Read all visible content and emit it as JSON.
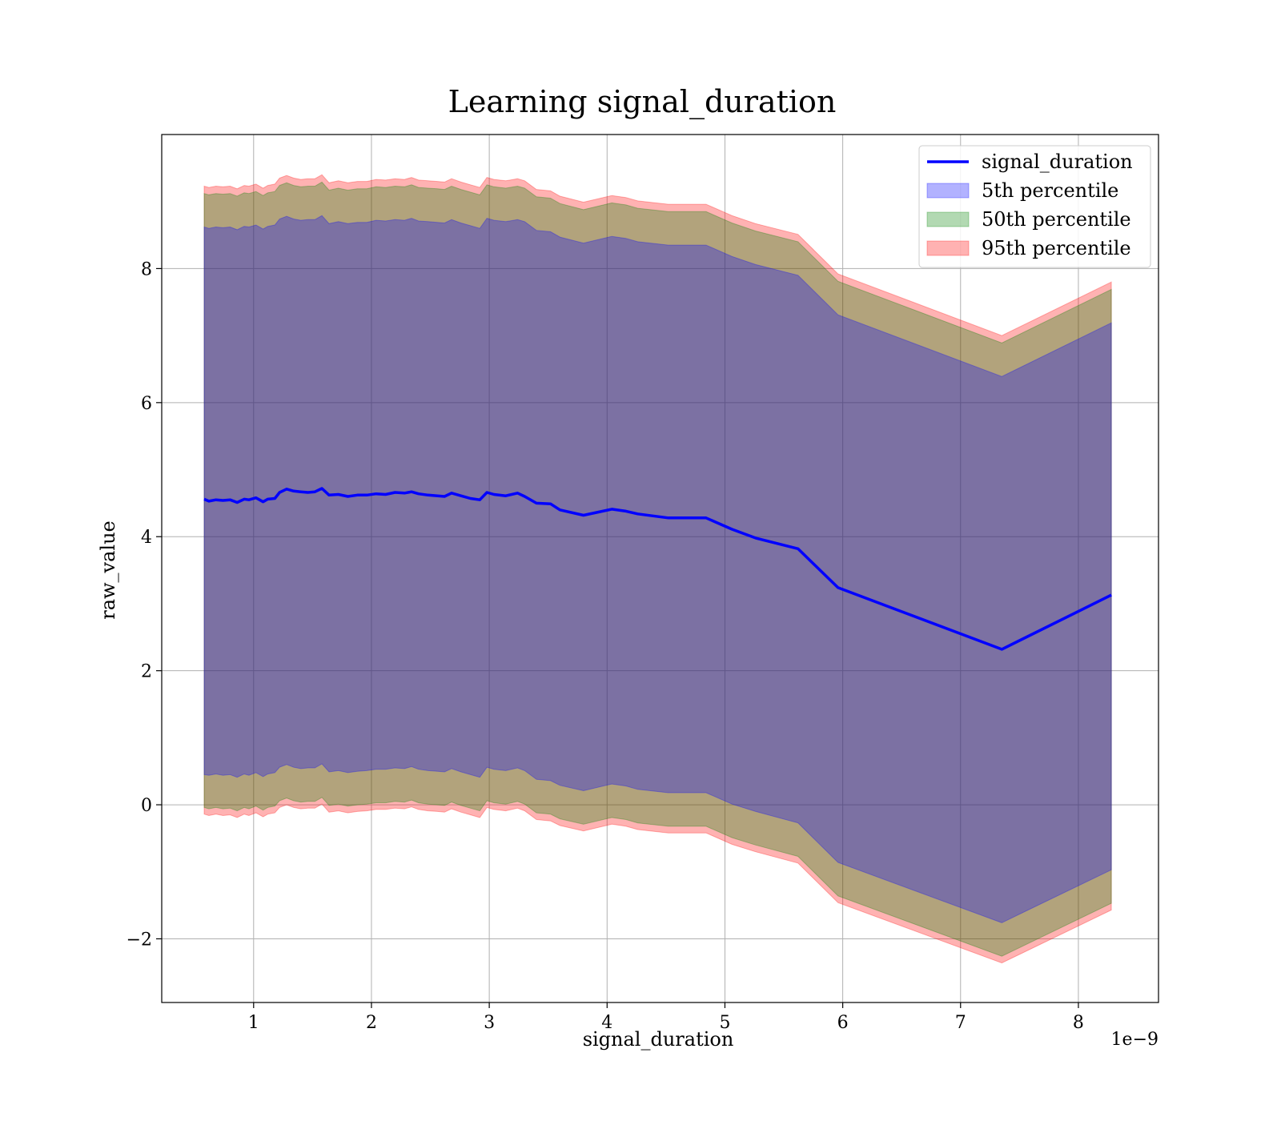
{
  "chart_data": {
    "type": "area",
    "title": "Learning signal_duration",
    "xlabel": "signal_duration",
    "ylabel": "raw_value",
    "x_offset_label": "1e−9",
    "x_tick_values": [
      1,
      2,
      3,
      4,
      5,
      6,
      7,
      8
    ],
    "x_tick_labels": [
      "1",
      "2",
      "3",
      "4",
      "5",
      "6",
      "7",
      "8"
    ],
    "y_tick_values": [
      -2,
      0,
      2,
      4,
      6,
      8
    ],
    "y_tick_labels": [
      "−2",
      "0",
      "2",
      "4",
      "6",
      "8"
    ],
    "xlim": [
      0.22,
      8.68
    ],
    "ylim": [
      -2.95,
      10.0
    ],
    "grid": true,
    "legend_position": "top-right",
    "x": [
      0.58,
      0.62,
      0.68,
      0.74,
      0.8,
      0.86,
      0.92,
      0.96,
      1.02,
      1.08,
      1.12,
      1.18,
      1.22,
      1.28,
      1.34,
      1.4,
      1.46,
      1.52,
      1.58,
      1.64,
      1.72,
      1.8,
      1.88,
      1.96,
      2.04,
      2.12,
      2.2,
      2.28,
      2.34,
      2.4,
      2.48,
      2.56,
      2.62,
      2.68,
      2.76,
      2.84,
      2.92,
      2.98,
      3.04,
      3.14,
      3.24,
      3.3,
      3.4,
      3.52,
      3.6,
      3.8,
      4.04,
      4.16,
      4.26,
      4.52,
      4.84,
      5.06,
      5.26,
      5.62,
      5.96,
      7.35,
      8.28
    ],
    "series": [
      {
        "name": "signal_duration",
        "color": "#0000ff",
        "values": [
          4.56,
          4.53,
          4.55,
          4.54,
          4.55,
          4.51,
          4.56,
          4.55,
          4.58,
          4.52,
          4.56,
          4.57,
          4.66,
          4.71,
          4.68,
          4.67,
          4.66,
          4.67,
          4.72,
          4.62,
          4.63,
          4.6,
          4.62,
          4.62,
          4.64,
          4.63,
          4.66,
          4.65,
          4.67,
          4.64,
          4.62,
          4.61,
          4.6,
          4.65,
          4.61,
          4.57,
          4.55,
          4.66,
          4.63,
          4.61,
          4.65,
          4.6,
          4.5,
          4.49,
          4.4,
          4.32,
          4.41,
          4.38,
          4.34,
          4.28,
          4.28,
          4.11,
          3.98,
          3.82,
          3.24,
          2.32,
          3.13
        ]
      },
      {
        "name": "5th percentile",
        "color": "#0000ff",
        "lower": [
          0.45,
          0.44,
          0.46,
          0.44,
          0.45,
          0.41,
          0.46,
          0.44,
          0.48,
          0.42,
          0.46,
          0.48,
          0.56,
          0.6,
          0.56,
          0.54,
          0.55,
          0.55,
          0.61,
          0.49,
          0.51,
          0.48,
          0.5,
          0.51,
          0.53,
          0.53,
          0.55,
          0.54,
          0.57,
          0.53,
          0.51,
          0.5,
          0.49,
          0.54,
          0.49,
          0.45,
          0.41,
          0.56,
          0.53,
          0.51,
          0.55,
          0.51,
          0.38,
          0.36,
          0.29,
          0.21,
          0.31,
          0.28,
          0.23,
          0.18,
          0.18,
          0.01,
          -0.1,
          -0.27,
          -0.86,
          -1.76,
          -0.97
        ],
        "upper": [
          8.62,
          8.6,
          8.62,
          8.61,
          8.62,
          8.58,
          8.63,
          8.62,
          8.65,
          8.59,
          8.63,
          8.65,
          8.74,
          8.78,
          8.74,
          8.72,
          8.73,
          8.73,
          8.79,
          8.67,
          8.7,
          8.67,
          8.69,
          8.69,
          8.72,
          8.71,
          8.73,
          8.72,
          8.75,
          8.71,
          8.7,
          8.69,
          8.68,
          8.73,
          8.68,
          8.64,
          8.6,
          8.75,
          8.72,
          8.7,
          8.73,
          8.7,
          8.57,
          8.55,
          8.47,
          8.38,
          8.48,
          8.45,
          8.4,
          8.35,
          8.35,
          8.18,
          8.06,
          7.9,
          7.31,
          6.39,
          7.19
        ]
      },
      {
        "name": "50th percentile",
        "color": "#008000",
        "lower": [
          -0.04,
          -0.06,
          -0.04,
          -0.06,
          -0.05,
          -0.09,
          -0.04,
          -0.06,
          -0.02,
          -0.08,
          -0.04,
          -0.02,
          0.06,
          0.1,
          0.06,
          0.04,
          0.05,
          0.05,
          0.11,
          -0.01,
          0.01,
          -0.02,
          0.0,
          0.01,
          0.03,
          0.03,
          0.05,
          0.04,
          0.07,
          0.03,
          0.01,
          0.0,
          -0.01,
          0.04,
          -0.01,
          -0.05,
          -0.09,
          0.06,
          0.03,
          0.01,
          0.05,
          0.01,
          -0.12,
          -0.14,
          -0.21,
          -0.29,
          -0.19,
          -0.22,
          -0.27,
          -0.32,
          -0.32,
          -0.49,
          -0.6,
          -0.77,
          -1.36,
          -2.26,
          -1.47
        ],
        "upper": [
          9.12,
          9.1,
          9.12,
          9.11,
          9.12,
          9.08,
          9.13,
          9.12,
          9.15,
          9.09,
          9.13,
          9.15,
          9.24,
          9.28,
          9.24,
          9.22,
          9.23,
          9.23,
          9.29,
          9.17,
          9.2,
          9.17,
          9.19,
          9.19,
          9.22,
          9.21,
          9.23,
          9.22,
          9.25,
          9.21,
          9.2,
          9.19,
          9.18,
          9.23,
          9.18,
          9.14,
          9.1,
          9.25,
          9.22,
          9.2,
          9.23,
          9.2,
          9.07,
          9.05,
          8.97,
          8.88,
          8.98,
          8.95,
          8.9,
          8.85,
          8.85,
          8.68,
          8.56,
          8.4,
          7.81,
          6.89,
          7.69
        ]
      },
      {
        "name": "95th percentile",
        "color": "#ff0000",
        "lower": [
          -0.14,
          -0.16,
          -0.14,
          -0.16,
          -0.15,
          -0.19,
          -0.14,
          -0.16,
          -0.12,
          -0.18,
          -0.14,
          -0.12,
          -0.04,
          0.0,
          -0.04,
          -0.06,
          -0.05,
          -0.05,
          0.01,
          -0.11,
          -0.09,
          -0.12,
          -0.1,
          -0.09,
          -0.07,
          -0.07,
          -0.05,
          -0.06,
          -0.03,
          -0.07,
          -0.09,
          -0.1,
          -0.11,
          -0.06,
          -0.11,
          -0.15,
          -0.19,
          -0.04,
          -0.07,
          -0.09,
          -0.05,
          -0.09,
          -0.22,
          -0.24,
          -0.31,
          -0.39,
          -0.29,
          -0.32,
          -0.37,
          -0.42,
          -0.42,
          -0.59,
          -0.7,
          -0.87,
          -1.46,
          -2.36,
          -1.57
        ],
        "upper": [
          9.23,
          9.21,
          9.23,
          9.22,
          9.23,
          9.19,
          9.24,
          9.23,
          9.26,
          9.2,
          9.24,
          9.26,
          9.35,
          9.39,
          9.35,
          9.33,
          9.34,
          9.34,
          9.4,
          9.28,
          9.31,
          9.28,
          9.3,
          9.3,
          9.33,
          9.32,
          9.34,
          9.33,
          9.36,
          9.32,
          9.31,
          9.3,
          9.29,
          9.34,
          9.29,
          9.25,
          9.21,
          9.36,
          9.33,
          9.31,
          9.34,
          9.31,
          9.18,
          9.16,
          9.08,
          8.99,
          9.09,
          9.06,
          9.01,
          8.96,
          8.96,
          8.79,
          8.67,
          8.51,
          7.92,
          7.0,
          7.8
        ]
      }
    ]
  }
}
